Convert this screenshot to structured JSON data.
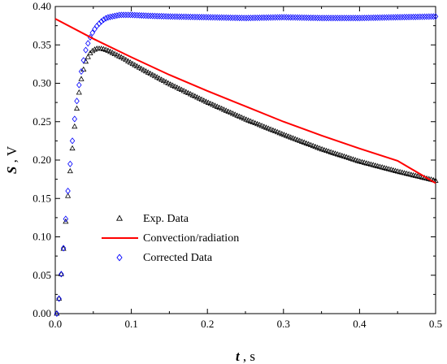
{
  "chart_data": {
    "type": "line",
    "title": "",
    "x_axis": {
      "symbol": "t",
      "unit_suffix": " , s",
      "range": [
        0.0,
        0.5
      ],
      "ticks": [
        0.0,
        0.1,
        0.2,
        0.3,
        0.4,
        0.5
      ],
      "tick_labels": [
        "0.0",
        "0.1",
        "0.2",
        "0.3",
        "0.4",
        "0.5"
      ]
    },
    "y_axis": {
      "symbol": "S",
      "unit_suffix": " , V",
      "range": [
        0.0,
        0.4
      ],
      "ticks": [
        0.0,
        0.05,
        0.1,
        0.15,
        0.2,
        0.25,
        0.3,
        0.35,
        0.4
      ],
      "tick_labels": [
        "0.00",
        "0.05",
        "0.10",
        "0.15",
        "0.20",
        "0.25",
        "0.30",
        "0.35",
        "0.40"
      ]
    },
    "grid": false,
    "legend_position": "lower-left",
    "series": [
      {
        "name": "Exp. Data",
        "marker": "triangle",
        "color": "#000000",
        "x": [
          0.002,
          0.005,
          0.01,
          0.015,
          0.02,
          0.025,
          0.03,
          0.035,
          0.04,
          0.045,
          0.05,
          0.055,
          0.06,
          0.065,
          0.07,
          0.08,
          0.09,
          0.1,
          0.12,
          0.15,
          0.2,
          0.25,
          0.3,
          0.35,
          0.4,
          0.45,
          0.5
        ],
        "y": [
          0.0,
          0.02,
          0.075,
          0.135,
          0.19,
          0.24,
          0.28,
          0.31,
          0.328,
          0.338,
          0.343,
          0.345,
          0.345,
          0.344,
          0.342,
          0.337,
          0.332,
          0.326,
          0.315,
          0.299,
          0.275,
          0.253,
          0.233,
          0.214,
          0.198,
          0.185,
          0.173
        ]
      },
      {
        "name": "Convection/radiation",
        "marker": "line",
        "color": "#ff0000",
        "x": [
          0.0,
          0.05,
          0.1,
          0.15,
          0.2,
          0.25,
          0.3,
          0.35,
          0.4,
          0.45,
          0.5
        ],
        "y": [
          0.384,
          0.358,
          0.334,
          0.311,
          0.29,
          0.27,
          0.25,
          0.232,
          0.215,
          0.199,
          0.17
        ]
      },
      {
        "name": "Corrected Data",
        "marker": "diamond",
        "color": "#0000ff",
        "x": [
          0.002,
          0.005,
          0.01,
          0.015,
          0.02,
          0.025,
          0.03,
          0.035,
          0.04,
          0.045,
          0.05,
          0.055,
          0.06,
          0.065,
          0.07,
          0.075,
          0.08,
          0.085,
          0.09,
          0.1,
          0.12,
          0.15,
          0.2,
          0.25,
          0.3,
          0.35,
          0.4,
          0.45,
          0.5
        ],
        "y": [
          0.0,
          0.02,
          0.075,
          0.14,
          0.2,
          0.25,
          0.29,
          0.32,
          0.343,
          0.358,
          0.368,
          0.375,
          0.38,
          0.384,
          0.386,
          0.387,
          0.388,
          0.389,
          0.389,
          0.389,
          0.388,
          0.387,
          0.386,
          0.385,
          0.386,
          0.385,
          0.385,
          0.386,
          0.387
        ]
      }
    ]
  }
}
